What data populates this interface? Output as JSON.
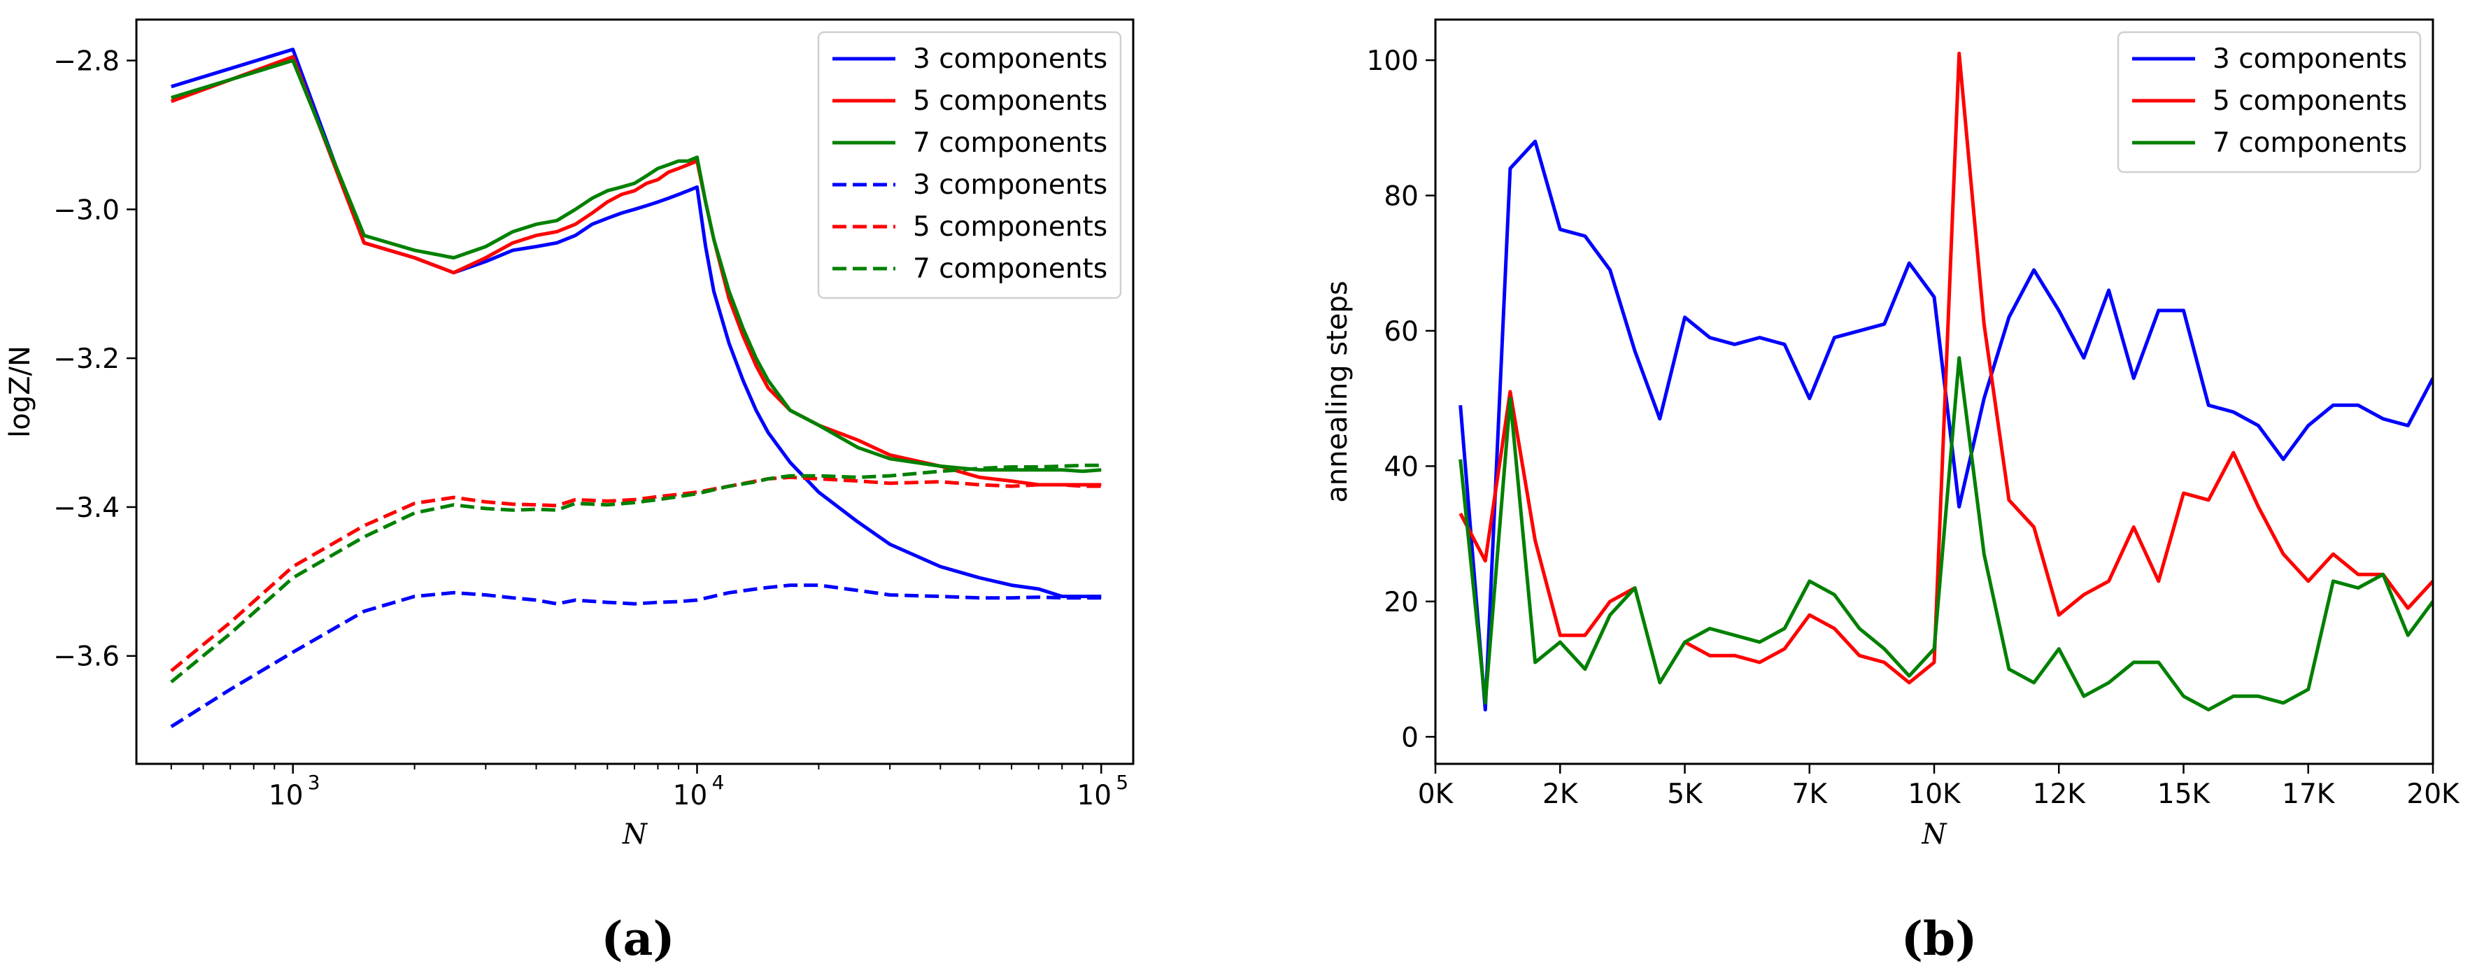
{
  "figure": {
    "panel_labels": [
      "(a)",
      "(b)"
    ]
  },
  "chart_data": [
    {
      "id": "a",
      "type": "line",
      "xscale": "log",
      "xlabel": "N",
      "ylabel": "logZ/N",
      "xlim": [
        410,
        120000
      ],
      "ylim": [
        -3.745,
        -2.745
      ],
      "xticks": [
        1000,
        10000,
        100000
      ],
      "xtick_labels": [
        "10",
        "10",
        "10"
      ],
      "xtick_exponents": [
        "3",
        "4",
        "5"
      ],
      "yticks": [
        -3.6,
        -3.4,
        -3.2,
        -3.0,
        -2.8
      ],
      "ytick_labels": [
        "−3.6",
        "−3.4",
        "−3.2",
        "−3.0",
        "−2.8"
      ],
      "legend_position": "top-right",
      "series": [
        {
          "name": "3 components",
          "color": "#0000ff",
          "dash": "solid",
          "x": [
            500,
            1000,
            1500,
            2000,
            2500,
            3000,
            3500,
            4000,
            4500,
            5000,
            5500,
            6000,
            6500,
            7000,
            7500,
            8000,
            8500,
            9000,
            9500,
            10000,
            10500,
            11000,
            12000,
            13000,
            14000,
            15000,
            17000,
            20000,
            25000,
            30000,
            40000,
            50000,
            60000,
            70000,
            80000,
            90000,
            100000
          ],
          "y": [
            -2.835,
            -2.785,
            -3.045,
            -3.065,
            -3.085,
            -3.07,
            -3.055,
            -3.05,
            -3.045,
            -3.035,
            -3.02,
            -3.012,
            -3.005,
            -3.0,
            -2.995,
            -2.99,
            -2.985,
            -2.98,
            -2.975,
            -2.97,
            -3.05,
            -3.11,
            -3.18,
            -3.23,
            -3.27,
            -3.3,
            -3.34,
            -3.38,
            -3.42,
            -3.45,
            -3.48,
            -3.495,
            -3.505,
            -3.51,
            -3.52,
            -3.52,
            -3.52
          ]
        },
        {
          "name": "5 components",
          "color": "#ff0000",
          "dash": "solid",
          "x": [
            500,
            1000,
            1500,
            2000,
            2500,
            3000,
            3500,
            4000,
            4500,
            5000,
            5500,
            6000,
            6500,
            7000,
            7500,
            8000,
            8500,
            9000,
            9500,
            10000,
            10500,
            11000,
            12000,
            13000,
            14000,
            15000,
            17000,
            20000,
            25000,
            30000,
            40000,
            50000,
            60000,
            70000,
            80000,
            90000,
            100000
          ],
          "y": [
            -2.855,
            -2.795,
            -3.045,
            -3.065,
            -3.085,
            -3.065,
            -3.045,
            -3.035,
            -3.03,
            -3.02,
            -3.005,
            -2.99,
            -2.98,
            -2.975,
            -2.965,
            -2.96,
            -2.95,
            -2.945,
            -2.94,
            -2.935,
            -2.99,
            -3.04,
            -3.12,
            -3.17,
            -3.21,
            -3.24,
            -3.27,
            -3.29,
            -3.31,
            -3.33,
            -3.345,
            -3.36,
            -3.365,
            -3.37,
            -3.37,
            -3.37,
            -3.37
          ]
        },
        {
          "name": "7 components",
          "color": "#008000",
          "dash": "solid",
          "x": [
            500,
            1000,
            1500,
            2000,
            2500,
            3000,
            3500,
            4000,
            4500,
            5000,
            5500,
            6000,
            6500,
            7000,
            7500,
            8000,
            8500,
            9000,
            9500,
            10000,
            10500,
            11000,
            12000,
            13000,
            14000,
            15000,
            17000,
            20000,
            25000,
            30000,
            40000,
            50000,
            60000,
            70000,
            80000,
            90000,
            100000
          ],
          "y": [
            -2.85,
            -2.8,
            -3.035,
            -3.055,
            -3.065,
            -3.05,
            -3.03,
            -3.02,
            -3.015,
            -3.0,
            -2.985,
            -2.975,
            -2.97,
            -2.965,
            -2.955,
            -2.945,
            -2.94,
            -2.935,
            -2.935,
            -2.93,
            -2.99,
            -3.04,
            -3.11,
            -3.16,
            -3.2,
            -3.23,
            -3.27,
            -3.29,
            -3.32,
            -3.335,
            -3.345,
            -3.35,
            -3.35,
            -3.35,
            -3.35,
            -3.352,
            -3.35
          ]
        },
        {
          "name": "3 components",
          "color": "#0000ff",
          "dash": "dashed",
          "x": [
            500,
            700,
            1000,
            1500,
            2000,
            2500,
            3000,
            3500,
            4000,
            4500,
            5000,
            6000,
            7000,
            8000,
            9000,
            10000,
            12000,
            14000,
            15000,
            17000,
            20000,
            25000,
            30000,
            40000,
            50000,
            60000,
            70000,
            80000,
            90000,
            100000
          ],
          "y": [
            -3.695,
            -3.645,
            -3.595,
            -3.54,
            -3.52,
            -3.515,
            -3.518,
            -3.522,
            -3.525,
            -3.53,
            -3.525,
            -3.528,
            -3.53,
            -3.528,
            -3.527,
            -3.525,
            -3.515,
            -3.51,
            -3.508,
            -3.505,
            -3.505,
            -3.512,
            -3.518,
            -3.52,
            -3.522,
            -3.522,
            -3.521,
            -3.522,
            -3.522,
            -3.522
          ]
        },
        {
          "name": "5 components",
          "color": "#ff0000",
          "dash": "dashed",
          "x": [
            500,
            700,
            1000,
            1500,
            2000,
            2500,
            3000,
            3500,
            4000,
            4500,
            5000,
            6000,
            7000,
            8000,
            9000,
            10000,
            12000,
            14000,
            15000,
            17000,
            20000,
            25000,
            30000,
            40000,
            50000,
            60000,
            70000,
            80000,
            90000,
            100000
          ],
          "y": [
            -3.62,
            -3.555,
            -3.48,
            -3.425,
            -3.395,
            -3.387,
            -3.393,
            -3.396,
            -3.397,
            -3.398,
            -3.39,
            -3.392,
            -3.39,
            -3.386,
            -3.383,
            -3.38,
            -3.372,
            -3.365,
            -3.362,
            -3.36,
            -3.362,
            -3.365,
            -3.368,
            -3.366,
            -3.37,
            -3.372,
            -3.37,
            -3.37,
            -3.372,
            -3.372
          ]
        },
        {
          "name": "7 components",
          "color": "#008000",
          "dash": "dashed",
          "x": [
            500,
            700,
            1000,
            1500,
            2000,
            2500,
            3000,
            3500,
            4000,
            4500,
            5000,
            6000,
            7000,
            8000,
            9000,
            10000,
            12000,
            14000,
            15000,
            17000,
            20000,
            25000,
            30000,
            40000,
            50000,
            60000,
            70000,
            80000,
            90000,
            100000
          ],
          "y": [
            -3.635,
            -3.57,
            -3.495,
            -3.44,
            -3.408,
            -3.397,
            -3.402,
            -3.404,
            -3.403,
            -3.404,
            -3.395,
            -3.397,
            -3.394,
            -3.39,
            -3.386,
            -3.382,
            -3.372,
            -3.366,
            -3.362,
            -3.358,
            -3.358,
            -3.36,
            -3.358,
            -3.352,
            -3.348,
            -3.346,
            -3.346,
            -3.345,
            -3.344,
            -3.344
          ]
        }
      ]
    },
    {
      "id": "b",
      "type": "line",
      "xlabel": "N",
      "ylabel": "annealing steps",
      "xlim": [
        0,
        20000
      ],
      "ylim": [
        -4,
        106
      ],
      "xticks": [
        0,
        2500,
        5000,
        7500,
        10000,
        12500,
        15000,
        17500,
        20000
      ],
      "xtick_labels": [
        "0K",
        "2K",
        "5K",
        "7K",
        "10K",
        "12K",
        "15K",
        "17K",
        "20K"
      ],
      "yticks": [
        0,
        20,
        40,
        60,
        80,
        100
      ],
      "ytick_labels": [
        "0",
        "20",
        "40",
        "60",
        "80",
        "100"
      ],
      "legend_position": "top-right",
      "x": [
        500,
        1000,
        1500,
        2000,
        2500,
        3000,
        3500,
        4000,
        4500,
        5000,
        5500,
        6000,
        6500,
        7000,
        7500,
        8000,
        8500,
        9000,
        9500,
        10000,
        10500,
        11000,
        11500,
        12000,
        12500,
        13000,
        13500,
        14000,
        14500,
        15000,
        15500,
        16000,
        16500,
        17000,
        17500,
        18000,
        18500,
        19000,
        19500,
        20000
      ],
      "series": [
        {
          "name": "3 components",
          "color": "#0000ff",
          "dash": "solid",
          "values": [
            49,
            4,
            84,
            88,
            75,
            74,
            69,
            57,
            47,
            62,
            59,
            58,
            59,
            58,
            50,
            59,
            60,
            61,
            70,
            65,
            34,
            50,
            62,
            69,
            63,
            56,
            66,
            53,
            63,
            63,
            49,
            48,
            46,
            41,
            46,
            49,
            49,
            47,
            46,
            53
          ]
        },
        {
          "name": "5 components",
          "color": "#ff0000",
          "dash": "solid",
          "values": [
            33,
            26,
            51,
            29,
            15,
            15,
            20,
            22,
            null,
            14,
            12,
            12,
            11,
            13,
            18,
            16,
            12,
            11,
            8,
            11,
            101,
            61,
            35,
            31,
            18,
            21,
            23,
            31,
            23,
            36,
            35,
            42,
            34,
            27,
            23,
            27,
            24,
            24,
            19,
            23
          ]
        },
        {
          "name": "7 components",
          "color": "#008000",
          "dash": "solid",
          "values": [
            41,
            5,
            50,
            11,
            14,
            10,
            18,
            22,
            8,
            14,
            16,
            15,
            14,
            16,
            23,
            21,
            16,
            13,
            9,
            13,
            56,
            27,
            10,
            8,
            13,
            6,
            8,
            11,
            11,
            6,
            4,
            6,
            6,
            5,
            7,
            23,
            22,
            24,
            15,
            20
          ]
        }
      ]
    }
  ]
}
